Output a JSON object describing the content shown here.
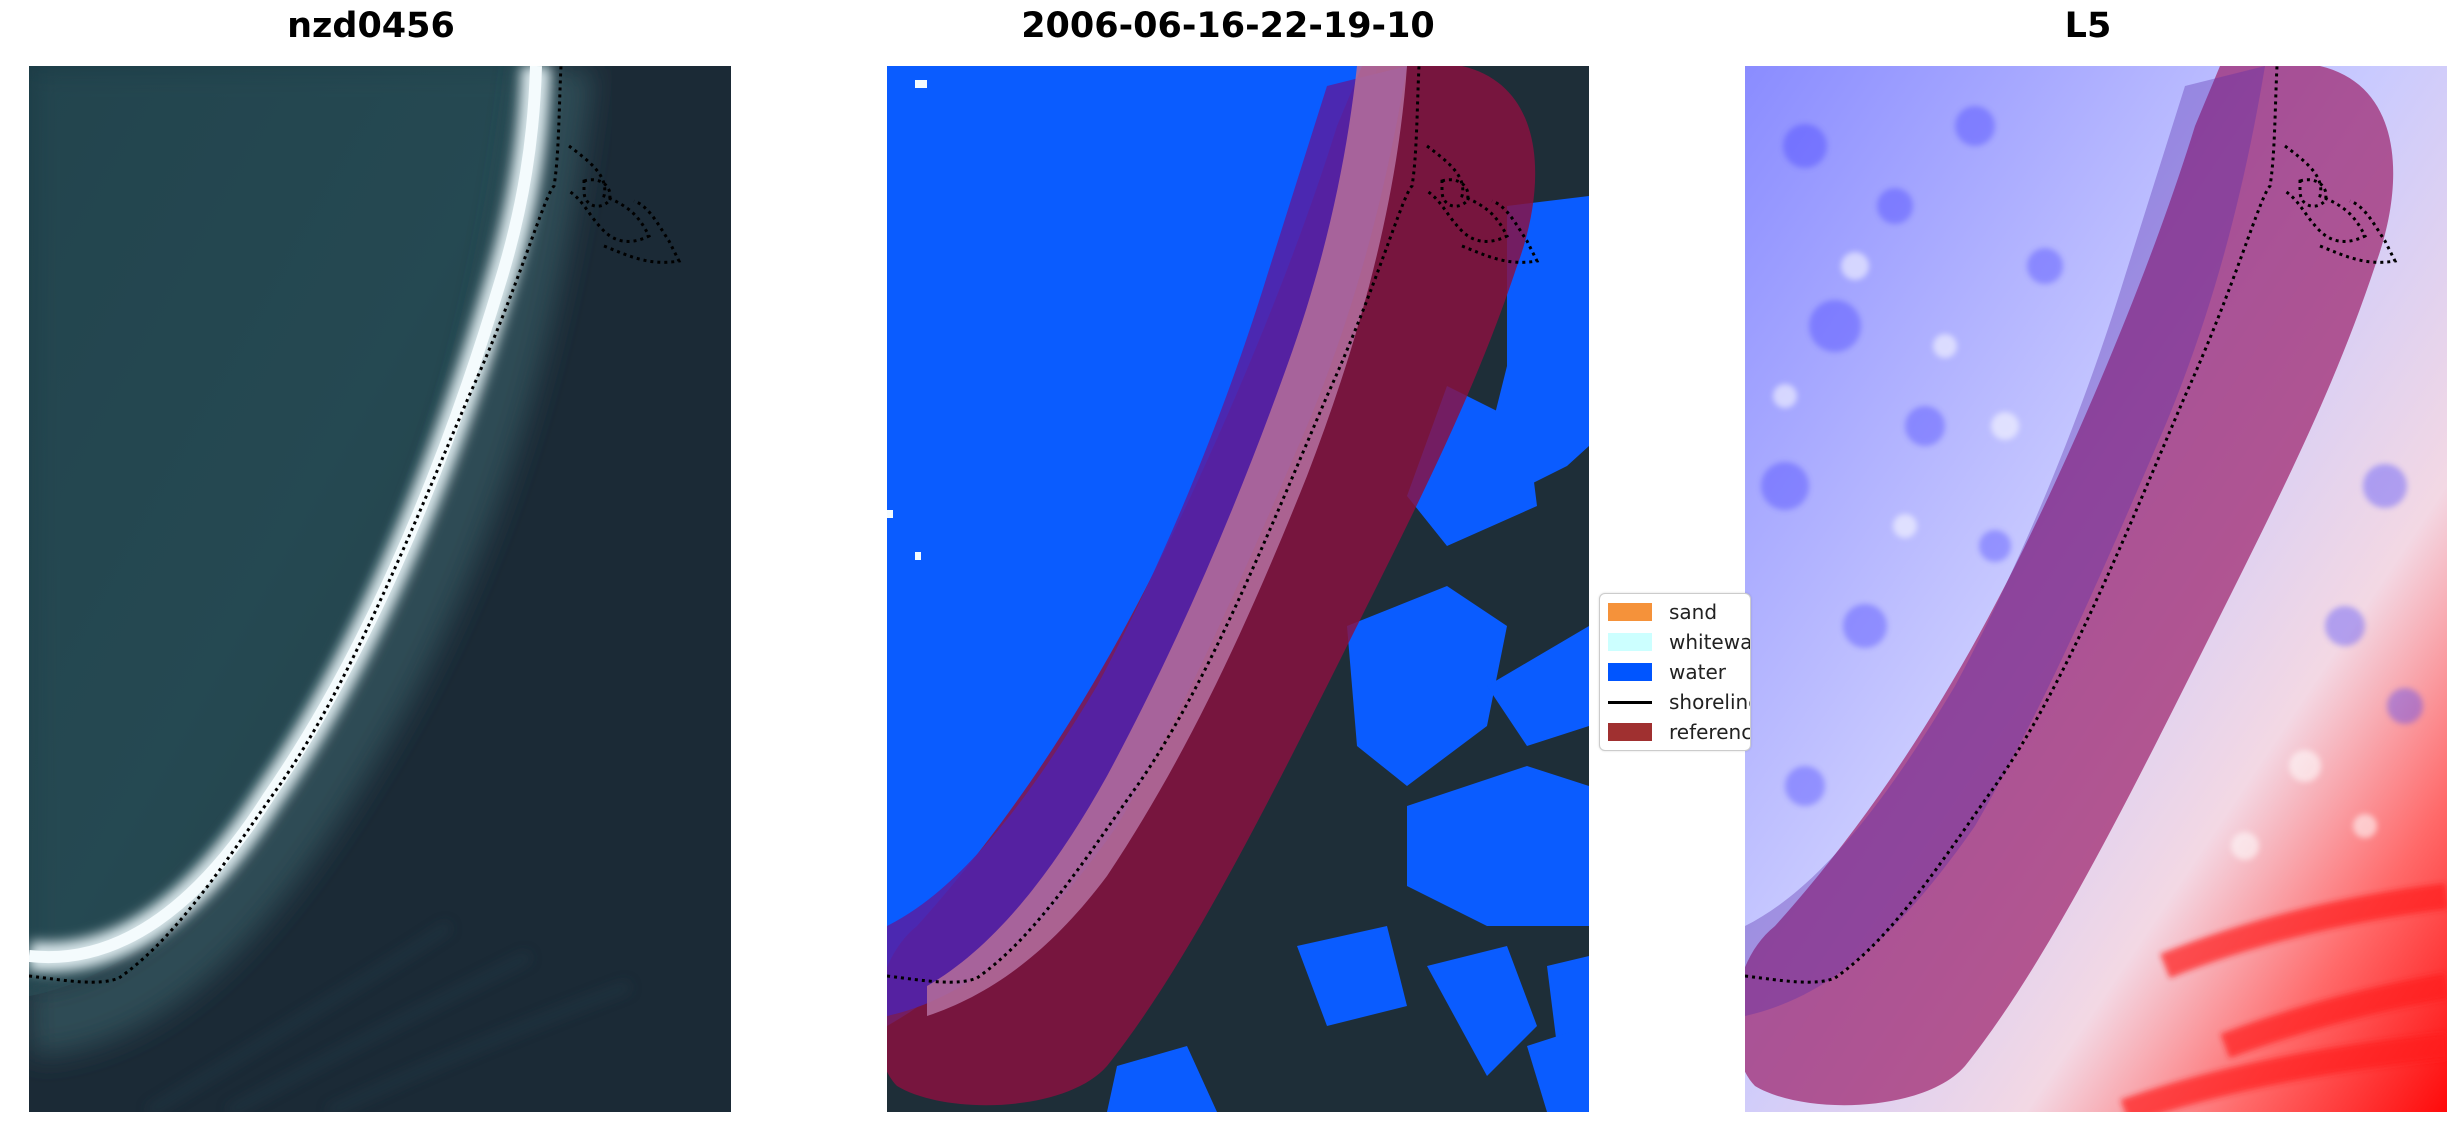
{
  "panels": {
    "left": {
      "title": "nzd0456"
    },
    "middle": {
      "title": "2006-06-16-22-19-10"
    },
    "right": {
      "title": "L5"
    }
  },
  "legend": {
    "items": [
      {
        "label": "sand",
        "color": "#f5923a"
      },
      {
        "label": "whitewater",
        "color": "#ccffff"
      },
      {
        "label": "water",
        "color": "#0055ff"
      },
      {
        "label": "shoreline",
        "color": "#000000"
      },
      {
        "label": "reference",
        "color": "#a03030"
      }
    ]
  },
  "colors": {
    "water_dark": "#1c2d38",
    "water_class": "#0a5cff",
    "reference_overlay": "#8b1040",
    "index_low": "#3030ff",
    "index_high": "#ff1010"
  }
}
